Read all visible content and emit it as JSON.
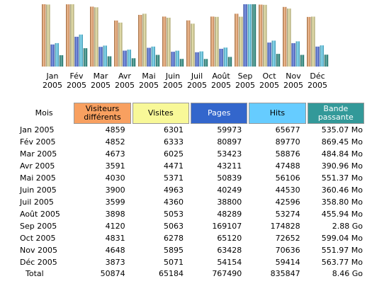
{
  "chart_data": {
    "type": "bar",
    "categories": [
      [
        "Jan",
        "2005"
      ],
      [
        "Fév",
        "2005"
      ],
      [
        "Mar",
        "2005"
      ],
      [
        "Avr",
        "2005"
      ],
      [
        "Mai",
        "2005"
      ],
      [
        "Juin",
        "2005"
      ],
      [
        "Juil",
        "2005"
      ],
      [
        "Août",
        "2005"
      ],
      [
        "Sep",
        "2005"
      ],
      [
        "Oct",
        "2005"
      ],
      [
        "Nov",
        "2005"
      ],
      [
        "Déc",
        "2005"
      ]
    ],
    "series": [
      {
        "name": "Visiteurs différents",
        "color": "#f0a060",
        "values": [
          4859,
          4852,
          4673,
          3591,
          4030,
          3900,
          3599,
          3898,
          4120,
          4831,
          4648,
          3873
        ]
      },
      {
        "name": "Visites",
        "color": "#e0d890",
        "values": [
          6301,
          6333,
          6025,
          4471,
          5371,
          4963,
          4360,
          5053,
          5063,
          6278,
          5895,
          5071
        ]
      },
      {
        "name": "Pages",
        "color": "#4466dd",
        "values": [
          59973,
          80897,
          53423,
          43211,
          50839,
          40249,
          38800,
          48289,
          169107,
          65120,
          63428,
          54154
        ]
      },
      {
        "name": "Hits",
        "color": "#55ccee",
        "values": [
          65677,
          89770,
          58876,
          47488,
          56106,
          44530,
          42596,
          53274,
          174828,
          72652,
          70636,
          59414
        ]
      },
      {
        "name": "Bande passante",
        "color": "#208a80",
        "values": [
          535.07,
          869.45,
          484.84,
          390.96,
          551.37,
          360.46,
          358.8,
          455.94,
          2949.12,
          599.04,
          551.97,
          563.77
        ]
      }
    ]
  },
  "table": {
    "headers": [
      "Mois",
      "Visiteurs différents",
      "Visites",
      "Pages",
      "Hits",
      "Bande passante"
    ],
    "header_colors": [
      "#ffffff",
      "#f8a060",
      "#f8f898",
      "#3366cc",
      "#66ccff",
      "#339999"
    ],
    "rows": [
      [
        "Jan 2005",
        "4859",
        "6301",
        "59973",
        "65677",
        "535.07 Mo"
      ],
      [
        "Fév 2005",
        "4852",
        "6333",
        "80897",
        "89770",
        "869.45 Mo"
      ],
      [
        "Mar 2005",
        "4673",
        "6025",
        "53423",
        "58876",
        "484.84 Mo"
      ],
      [
        "Avr 2005",
        "3591",
        "4471",
        "43211",
        "47488",
        "390.96 Mo"
      ],
      [
        "Mai 2005",
        "4030",
        "5371",
        "50839",
        "56106",
        "551.37 Mo"
      ],
      [
        "Juin 2005",
        "3900",
        "4963",
        "40249",
        "44530",
        "360.46 Mo"
      ],
      [
        "Juil 2005",
        "3599",
        "4360",
        "38800",
        "42596",
        "358.80 Mo"
      ],
      [
        "Août 2005",
        "3898",
        "5053",
        "48289",
        "53274",
        "455.94 Mo"
      ],
      [
        "Sep 2005",
        "4120",
        "5063",
        "169107",
        "174828",
        "2.88 Go"
      ],
      [
        "Oct 2005",
        "4831",
        "6278",
        "65120",
        "72652",
        "599.04 Mo"
      ],
      [
        "Nov 2005",
        "4648",
        "5895",
        "63428",
        "70636",
        "551.97 Mo"
      ],
      [
        "Déc 2005",
        "3873",
        "5071",
        "54154",
        "59414",
        "563.77 Mo"
      ]
    ],
    "total": [
      "Total",
      "50874",
      "65184",
      "767490",
      "835847",
      "8.46 Go"
    ]
  }
}
